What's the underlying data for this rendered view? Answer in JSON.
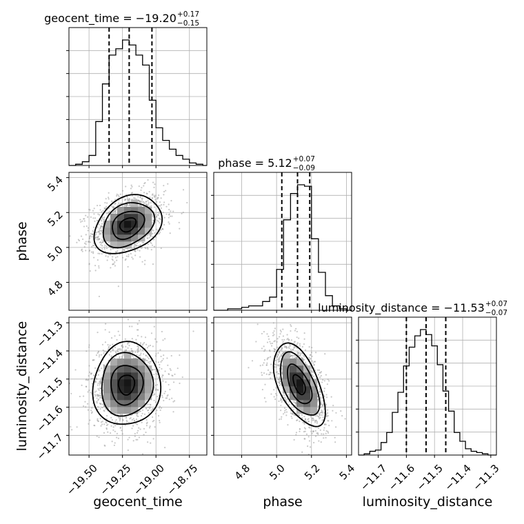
{
  "chart_data": {
    "type": "corner",
    "grid": true,
    "parameters": [
      "geocent_time",
      "phase",
      "luminosity_distance"
    ],
    "titles": [
      {
        "param": "geocent_time",
        "median": "−19.20",
        "plus": "+0.17",
        "minus": "−0.15"
      },
      {
        "param": "phase",
        "median": "5.12",
        "plus": "+0.07",
        "minus": "−0.09"
      },
      {
        "param": "luminosity_distance",
        "median": "−11.53",
        "plus": "+0.07",
        "minus": "−0.07"
      }
    ],
    "ranges": {
      "geocent_time": [
        -19.65,
        -18.62
      ],
      "phase": [
        4.64,
        5.43
      ],
      "luminosity_distance": [
        -11.77,
        -11.28
      ]
    },
    "ticks": {
      "geocent_time": [
        -19.5,
        -19.25,
        -19.0,
        -18.75
      ],
      "phase": [
        4.8,
        5.0,
        5.2,
        5.4
      ],
      "luminosity_distance": [
        -11.7,
        -11.6,
        -11.5,
        -11.4,
        -11.3
      ]
    },
    "tick_labels": {
      "geocent_time": [
        "−19.50",
        "−19.25",
        "−19.00",
        "−18.75"
      ],
      "phase": [
        "4.8",
        "5.0",
        "5.2",
        "5.4"
      ],
      "luminosity_distance": [
        "−11.7",
        "−11.6",
        "−11.5",
        "−11.4",
        "−11.3"
      ]
    },
    "quantiles": {
      "geocent_time": [
        -19.35,
        -19.2,
        -19.03
      ],
      "phase": [
        5.03,
        5.12,
        5.19
      ],
      "luminosity_distance": [
        -11.6,
        -11.53,
        -11.46
      ]
    },
    "marginals": {
      "geocent_time": {
        "edges": [
          -19.65,
          -19.6,
          -19.55,
          -19.5,
          -19.45,
          -19.4,
          -19.35,
          -19.3,
          -19.25,
          -19.2,
          -19.15,
          -19.1,
          -19.05,
          -19.0,
          -18.95,
          -18.9,
          -18.85,
          -18.8,
          -18.75,
          -18.7,
          -18.65,
          -18.62
        ],
        "counts": [
          0,
          1,
          3,
          8,
          35,
          65,
          88,
          93,
          100,
          96,
          88,
          80,
          52,
          30,
          20,
          13,
          8,
          5,
          2,
          1,
          0
        ]
      },
      "phase": {
        "edges": [
          4.64,
          4.68,
          4.72,
          4.76,
          4.8,
          4.84,
          4.88,
          4.92,
          4.96,
          5.0,
          5.04,
          5.08,
          5.12,
          5.16,
          5.2,
          5.24,
          5.28,
          5.32,
          5.36,
          5.4,
          5.43
        ],
        "counts": [
          0,
          0,
          1,
          1,
          2,
          3,
          3,
          6,
          9,
          28,
          62,
          80,
          86,
          85,
          49,
          26,
          10,
          3,
          1,
          0
        ]
      },
      "luminosity_distance": {
        "edges": [
          -11.77,
          -11.75,
          -11.73,
          -11.71,
          -11.69,
          -11.67,
          -11.65,
          -11.63,
          -11.61,
          -11.59,
          -11.57,
          -11.55,
          -11.53,
          -11.51,
          -11.49,
          -11.47,
          -11.45,
          -11.43,
          -11.41,
          -11.39,
          -11.37,
          -11.35,
          -11.33,
          -11.31,
          -11.29,
          -11.28
        ],
        "counts": [
          0,
          1,
          3,
          4,
          10,
          18,
          34,
          50,
          71,
          86,
          95,
          100,
          96,
          87,
          72,
          51,
          35,
          18,
          11,
          5,
          3,
          2,
          1,
          0,
          0
        ]
      }
    },
    "joint": [
      {
        "x": "geocent_time",
        "y": "phase",
        "center": [
          -19.21,
          5.13
        ],
        "sigma": [
          0.12,
          0.08
        ],
        "rho": 0.3
      },
      {
        "x": "geocent_time",
        "y": "luminosity_distance",
        "center": [
          -19.22,
          -11.52
        ],
        "sigma": [
          0.12,
          0.07
        ],
        "rho": 0.05
      },
      {
        "x": "phase",
        "y": "luminosity_distance",
        "center": [
          5.13,
          -11.52
        ],
        "sigma": [
          0.07,
          0.07
        ],
        "rho": -0.55
      }
    ]
  }
}
